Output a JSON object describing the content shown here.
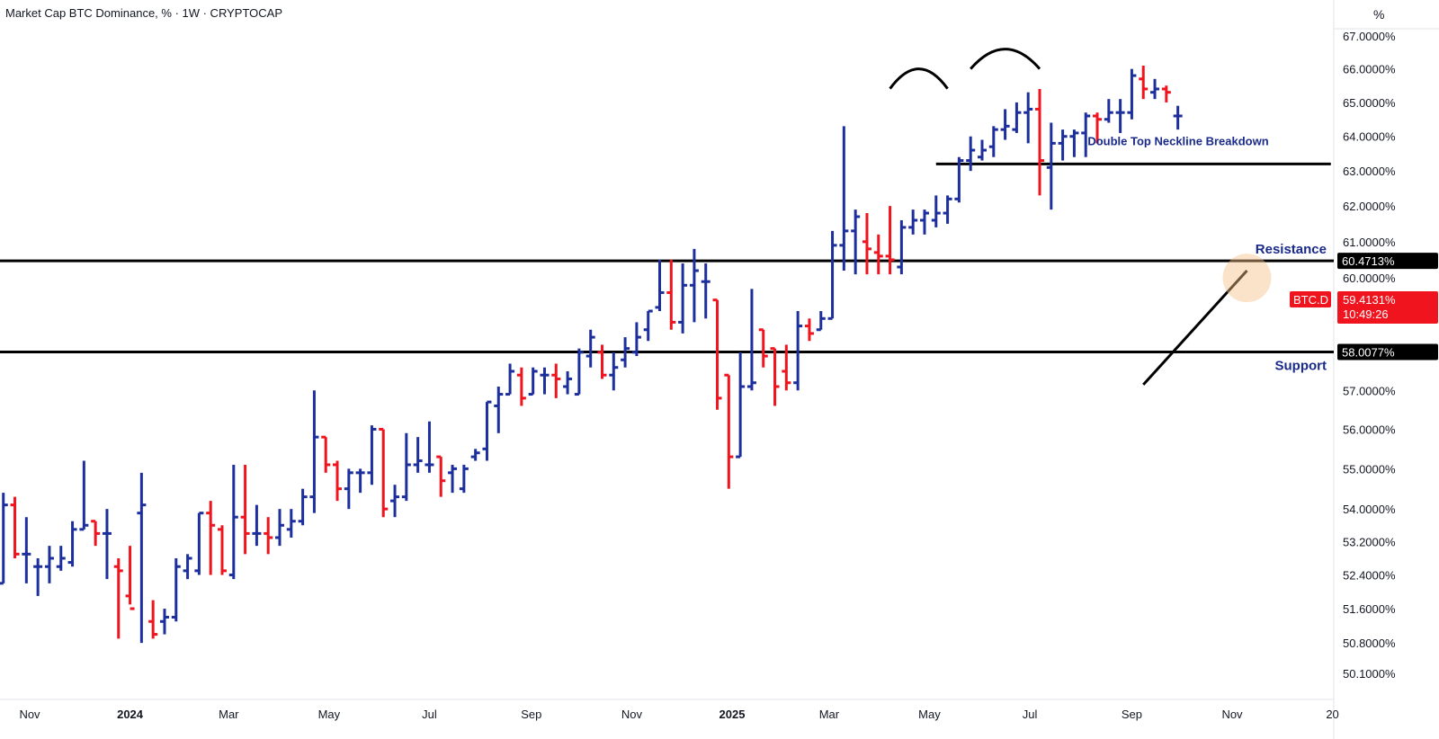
{
  "header": {
    "title": "Market Cap BTC Dominance, % · 1W · CRYPTOCAP",
    "unit": "%"
  },
  "colors": {
    "up": "#1c2f9c",
    "down": "#f0141e",
    "line": "#000000",
    "grid": "#e0e3eb",
    "annotation": "#1a2a8a",
    "highlight": "#f6c08a"
  },
  "chart_data": {
    "type": "ohlc-bar",
    "title": "Market Cap BTC Dominance, % · 1W · CRYPTOCAP",
    "y_scale": "log",
    "ylim": [
      49.6,
      67.4
    ],
    "y_ticks": [
      "67.0000%",
      "66.0000%",
      "65.0000%",
      "64.0000%",
      "63.0000%",
      "62.0000%",
      "61.0000%",
      "60.0000%",
      "59.4131%",
      "58.0077%",
      "57.0000%",
      "56.0000%",
      "55.0000%",
      "54.0000%",
      "53.2000%",
      "52.4000%",
      "51.6000%",
      "50.8000%",
      "50.1000%"
    ],
    "y_tick_values": [
      67.0,
      66.0,
      65.0,
      64.0,
      63.0,
      62.0,
      61.0,
      60.0,
      57.0,
      56.0,
      55.0,
      54.0,
      53.2,
      52.4,
      51.6,
      50.8,
      50.1
    ],
    "x_ticks": [
      {
        "label": "Nov",
        "date": "2023-11-01"
      },
      {
        "label": "2024",
        "date": "2024-01-01",
        "bold": true
      },
      {
        "label": "Mar",
        "date": "2024-03-01"
      },
      {
        "label": "May",
        "date": "2024-05-01"
      },
      {
        "label": "Jul",
        "date": "2024-07-01"
      },
      {
        "label": "Sep",
        "date": "2024-09-01"
      },
      {
        "label": "Nov",
        "date": "2024-11-01"
      },
      {
        "label": "2025",
        "date": "2025-01-01",
        "bold": true
      },
      {
        "label": "Mar",
        "date": "2025-03-01"
      },
      {
        "label": "May",
        "date": "2025-05-01"
      },
      {
        "label": "Jul",
        "date": "2025-07-01"
      },
      {
        "label": "Sep",
        "date": "2025-09-01"
      },
      {
        "label": "Nov",
        "date": "2025-11-01"
      },
      {
        "label": "20",
        "date": "2026-01-01"
      }
    ],
    "x_range": [
      "2023-10-16",
      "2026-01-04"
    ],
    "levels": {
      "resistance": {
        "value": 60.4713,
        "label": "60.4713%",
        "text": "Resistance"
      },
      "support": {
        "value": 58.0077,
        "label": "58.0077%",
        "text": "Support"
      },
      "neckline": {
        "value": 63.2,
        "from": "2025-05-05",
        "to": "2025-12-31",
        "text": "Double Top Neckline Breakdown"
      }
    },
    "current": {
      "symbol": "BTC.D",
      "value": "59.4131%",
      "countdown": "10:49:26"
    },
    "trendline": {
      "from": {
        "date": "2025-09-08",
        "value": 57.15
      },
      "to": {
        "date": "2025-11-10",
        "value": 60.2
      }
    },
    "double_top_arcs": [
      {
        "from": "2025-04-07",
        "to": "2025-05-12",
        "peak": 66.0
      },
      {
        "from": "2025-05-26",
        "to": "2025-07-07",
        "peak": 66.6
      }
    ],
    "highlight_point": {
      "date": "2025-11-10",
      "value": 60.0
    },
    "bars": [
      {
        "date": "2023-10-16",
        "o": 52.2,
        "h": 54.4,
        "l": 52.2,
        "c": 54.1
      },
      {
        "date": "2023-10-23",
        "o": 54.1,
        "h": 54.3,
        "l": 52.8,
        "c": 52.9
      },
      {
        "date": "2023-10-30",
        "o": 52.9,
        "h": 53.8,
        "l": 52.2,
        "c": 52.9
      },
      {
        "date": "2023-11-06",
        "o": 52.6,
        "h": 52.8,
        "l": 51.9,
        "c": 52.6
      },
      {
        "date": "2023-11-13",
        "o": 52.6,
        "h": 53.1,
        "l": 52.2,
        "c": 52.8
      },
      {
        "date": "2023-11-20",
        "o": 52.6,
        "h": 53.1,
        "l": 52.5,
        "c": 52.8
      },
      {
        "date": "2023-11-27",
        "o": 52.7,
        "h": 53.7,
        "l": 52.6,
        "c": 53.5
      },
      {
        "date": "2023-12-04",
        "o": 53.5,
        "h": 55.2,
        "l": 53.5,
        "c": 53.6
      },
      {
        "date": "2023-12-11",
        "o": 53.7,
        "h": 53.7,
        "l": 53.1,
        "c": 53.4
      },
      {
        "date": "2023-12-18",
        "o": 53.4,
        "h": 54.0,
        "l": 52.3,
        "c": 53.4
      },
      {
        "date": "2023-12-25",
        "o": 52.6,
        "h": 52.8,
        "l": 50.9,
        "c": 52.5
      },
      {
        "date": "2024-01-01",
        "o": 51.9,
        "h": 53.1,
        "l": 51.7,
        "c": 51.6
      },
      {
        "date": "2024-01-08",
        "o": 53.9,
        "h": 54.9,
        "l": 50.8,
        "c": 54.1
      },
      {
        "date": "2024-01-15",
        "o": 51.3,
        "h": 51.8,
        "l": 50.9,
        "c": 51.0
      },
      {
        "date": "2024-01-22",
        "o": 51.3,
        "h": 51.6,
        "l": 51.0,
        "c": 51.4
      },
      {
        "date": "2024-01-29",
        "o": 51.4,
        "h": 52.8,
        "l": 51.3,
        "c": 52.6
      },
      {
        "date": "2024-02-05",
        "o": 52.5,
        "h": 52.9,
        "l": 52.3,
        "c": 52.8
      },
      {
        "date": "2024-02-12",
        "o": 52.5,
        "h": 53.9,
        "l": 52.4,
        "c": 53.9
      },
      {
        "date": "2024-02-19",
        "o": 53.9,
        "h": 54.2,
        "l": 52.4,
        "c": 53.6
      },
      {
        "date": "2024-02-26",
        "o": 53.5,
        "h": 53.6,
        "l": 52.4,
        "c": 52.5
      },
      {
        "date": "2024-03-04",
        "o": 52.4,
        "h": 55.1,
        "l": 52.3,
        "c": 53.8
      },
      {
        "date": "2024-03-11",
        "o": 53.8,
        "h": 55.1,
        "l": 52.9,
        "c": 53.4
      },
      {
        "date": "2024-03-18",
        "o": 53.4,
        "h": 54.1,
        "l": 53.1,
        "c": 53.4
      },
      {
        "date": "2024-03-25",
        "o": 53.4,
        "h": 53.8,
        "l": 52.9,
        "c": 53.3
      },
      {
        "date": "2024-04-01",
        "o": 53.3,
        "h": 54.0,
        "l": 53.1,
        "c": 53.6
      },
      {
        "date": "2024-04-08",
        "o": 53.5,
        "h": 54.0,
        "l": 53.3,
        "c": 53.7
      },
      {
        "date": "2024-04-15",
        "o": 53.7,
        "h": 54.5,
        "l": 53.6,
        "c": 54.3
      },
      {
        "date": "2024-04-22",
        "o": 54.3,
        "h": 57.0,
        "l": 53.9,
        "c": 55.8
      },
      {
        "date": "2024-04-29",
        "o": 55.8,
        "h": 55.8,
        "l": 54.9,
        "c": 55.1
      },
      {
        "date": "2024-05-06",
        "o": 55.1,
        "h": 55.2,
        "l": 54.2,
        "c": 54.5
      },
      {
        "date": "2024-05-13",
        "o": 54.5,
        "h": 55.0,
        "l": 54.0,
        "c": 54.9
      },
      {
        "date": "2024-05-20",
        "o": 54.9,
        "h": 55.0,
        "l": 54.4,
        "c": 54.9
      },
      {
        "date": "2024-05-27",
        "o": 54.9,
        "h": 56.1,
        "l": 54.6,
        "c": 56.0
      },
      {
        "date": "2024-06-03",
        "o": 56.0,
        "h": 56.0,
        "l": 53.8,
        "c": 54.0
      },
      {
        "date": "2024-06-10",
        "o": 54.2,
        "h": 54.6,
        "l": 53.8,
        "c": 54.3
      },
      {
        "date": "2024-06-17",
        "o": 54.3,
        "h": 55.9,
        "l": 54.2,
        "c": 55.1
      },
      {
        "date": "2024-06-24",
        "o": 55.1,
        "h": 55.8,
        "l": 54.9,
        "c": 55.2
      },
      {
        "date": "2024-07-01",
        "o": 55.1,
        "h": 56.2,
        "l": 54.9,
        "c": 55.1
      },
      {
        "date": "2024-07-08",
        "o": 55.3,
        "h": 55.3,
        "l": 54.3,
        "c": 54.7
      },
      {
        "date": "2024-07-15",
        "o": 54.9,
        "h": 55.1,
        "l": 54.4,
        "c": 55.0
      },
      {
        "date": "2024-07-22",
        "o": 54.5,
        "h": 55.1,
        "l": 54.4,
        "c": 55.0
      },
      {
        "date": "2024-07-29",
        "o": 55.3,
        "h": 55.5,
        "l": 55.2,
        "c": 55.4
      },
      {
        "date": "2024-08-05",
        "o": 55.5,
        "h": 56.7,
        "l": 55.2,
        "c": 56.7
      },
      {
        "date": "2024-08-12",
        "o": 56.6,
        "h": 57.1,
        "l": 55.9,
        "c": 56.9
      },
      {
        "date": "2024-08-19",
        "o": 56.9,
        "h": 57.7,
        "l": 56.9,
        "c": 57.5
      },
      {
        "date": "2024-08-26",
        "o": 57.4,
        "h": 57.6,
        "l": 56.6,
        "c": 56.8
      },
      {
        "date": "2024-09-02",
        "o": 56.9,
        "h": 57.6,
        "l": 56.9,
        "c": 57.5
      },
      {
        "date": "2024-09-09",
        "o": 57.4,
        "h": 57.6,
        "l": 56.9,
        "c": 57.4
      },
      {
        "date": "2024-09-16",
        "o": 57.4,
        "h": 57.7,
        "l": 56.8,
        "c": 57.3
      },
      {
        "date": "2024-09-23",
        "o": 57.1,
        "h": 57.5,
        "l": 56.9,
        "c": 57.3
      },
      {
        "date": "2024-09-30",
        "o": 56.9,
        "h": 58.1,
        "l": 56.9,
        "c": 58.0
      },
      {
        "date": "2024-10-07",
        "o": 57.9,
        "h": 58.6,
        "l": 57.6,
        "c": 58.4
      },
      {
        "date": "2024-10-14",
        "o": 58.0,
        "h": 58.2,
        "l": 57.3,
        "c": 57.4
      },
      {
        "date": "2024-10-21",
        "o": 57.4,
        "h": 58.0,
        "l": 57.0,
        "c": 57.6
      },
      {
        "date": "2024-10-28",
        "o": 57.8,
        "h": 58.4,
        "l": 57.6,
        "c": 58.1
      },
      {
        "date": "2024-11-04",
        "o": 58.0,
        "h": 58.8,
        "l": 57.9,
        "c": 58.4
      },
      {
        "date": "2024-11-11",
        "o": 58.6,
        "h": 59.1,
        "l": 58.3,
        "c": 59.1
      },
      {
        "date": "2024-11-18",
        "o": 59.2,
        "h": 60.5,
        "l": 59.1,
        "c": 59.6
      },
      {
        "date": "2024-11-25",
        "o": 59.6,
        "h": 60.5,
        "l": 58.6,
        "c": 58.8
      },
      {
        "date": "2024-12-02",
        "o": 58.8,
        "h": 60.4,
        "l": 58.5,
        "c": 59.8
      },
      {
        "date": "2024-12-09",
        "o": 59.8,
        "h": 60.8,
        "l": 58.8,
        "c": 60.2
      },
      {
        "date": "2024-12-16",
        "o": 59.9,
        "h": 60.4,
        "l": 58.9,
        "c": 59.9
      },
      {
        "date": "2024-12-23",
        "o": 59.4,
        "h": 59.4,
        "l": 56.5,
        "c": 56.8
      },
      {
        "date": "2024-12-30",
        "o": 57.4,
        "h": 57.4,
        "l": 54.5,
        "c": 55.3
      },
      {
        "date": "2025-01-06",
        "o": 55.3,
        "h": 58.0,
        "l": 55.3,
        "c": 57.1
      },
      {
        "date": "2025-01-13",
        "o": 57.1,
        "h": 59.7,
        "l": 57.0,
        "c": 57.2
      },
      {
        "date": "2025-01-20",
        "o": 58.6,
        "h": 58.6,
        "l": 57.6,
        "c": 57.9
      },
      {
        "date": "2025-01-27",
        "o": 58.1,
        "h": 58.1,
        "l": 56.6,
        "c": 57.1
      },
      {
        "date": "2025-02-03",
        "o": 57.5,
        "h": 58.2,
        "l": 57.0,
        "c": 57.2
      },
      {
        "date": "2025-02-10",
        "o": 57.2,
        "h": 59.1,
        "l": 57.0,
        "c": 58.7
      },
      {
        "date": "2025-02-17",
        "o": 58.7,
        "h": 58.9,
        "l": 58.3,
        "c": 58.5
      },
      {
        "date": "2025-02-24",
        "o": 58.6,
        "h": 59.1,
        "l": 58.6,
        "c": 58.9
      },
      {
        "date": "2025-03-03",
        "o": 58.9,
        "h": 61.3,
        "l": 58.9,
        "c": 60.9
      },
      {
        "date": "2025-03-10",
        "o": 60.9,
        "h": 64.3,
        "l": 60.2,
        "c": 61.3
      },
      {
        "date": "2025-03-17",
        "o": 61.3,
        "h": 61.9,
        "l": 60.1,
        "c": 61.7
      },
      {
        "date": "2025-03-24",
        "o": 61.0,
        "h": 61.8,
        "l": 60.1,
        "c": 60.8
      },
      {
        "date": "2025-03-31",
        "o": 60.7,
        "h": 61.2,
        "l": 60.1,
        "c": 60.6
      },
      {
        "date": "2025-04-07",
        "o": 60.6,
        "h": 62.0,
        "l": 60.1,
        "c": 60.5
      },
      {
        "date": "2025-04-14",
        "o": 60.3,
        "h": 61.6,
        "l": 60.1,
        "c": 61.4
      },
      {
        "date": "2025-04-21",
        "o": 61.4,
        "h": 61.9,
        "l": 61.2,
        "c": 61.6
      },
      {
        "date": "2025-04-28",
        "o": 61.6,
        "h": 61.9,
        "l": 61.2,
        "c": 61.8
      },
      {
        "date": "2025-05-05",
        "o": 61.6,
        "h": 62.3,
        "l": 61.4,
        "c": 61.8
      },
      {
        "date": "2025-05-12",
        "o": 61.8,
        "h": 62.3,
        "l": 61.5,
        "c": 62.2
      },
      {
        "date": "2025-05-19",
        "o": 62.2,
        "h": 63.4,
        "l": 62.1,
        "c": 63.3
      },
      {
        "date": "2025-05-26",
        "o": 63.3,
        "h": 64.0,
        "l": 63.0,
        "c": 63.6
      },
      {
        "date": "2025-06-02",
        "o": 63.4,
        "h": 63.9,
        "l": 63.3,
        "c": 63.6
      },
      {
        "date": "2025-06-09",
        "o": 63.7,
        "h": 64.3,
        "l": 63.4,
        "c": 64.2
      },
      {
        "date": "2025-06-16",
        "o": 64.2,
        "h": 64.8,
        "l": 63.9,
        "c": 64.3
      },
      {
        "date": "2025-06-23",
        "o": 64.2,
        "h": 65.0,
        "l": 64.1,
        "c": 64.7
      },
      {
        "date": "2025-06-30",
        "o": 64.7,
        "h": 65.3,
        "l": 63.8,
        "c": 64.8
      },
      {
        "date": "2025-07-07",
        "o": 64.8,
        "h": 65.4,
        "l": 62.3,
        "c": 63.3
      },
      {
        "date": "2025-07-14",
        "o": 63.1,
        "h": 64.4,
        "l": 61.9,
        "c": 63.8
      },
      {
        "date": "2025-07-21",
        "o": 63.8,
        "h": 64.2,
        "l": 63.3,
        "c": 64.0
      },
      {
        "date": "2025-07-28",
        "o": 64.0,
        "h": 64.2,
        "l": 63.4,
        "c": 64.1
      },
      {
        "date": "2025-08-04",
        "o": 64.1,
        "h": 64.7,
        "l": 63.4,
        "c": 64.6
      },
      {
        "date": "2025-08-11",
        "o": 64.6,
        "h": 64.7,
        "l": 63.8,
        "c": 64.5
      },
      {
        "date": "2025-08-18",
        "o": 64.5,
        "h": 65.1,
        "l": 64.4,
        "c": 64.7
      },
      {
        "date": "2025-08-25",
        "o": 64.7,
        "h": 65.1,
        "l": 64.1,
        "c": 64.7
      },
      {
        "date": "2025-09-01",
        "o": 64.7,
        "h": 66.0,
        "l": 64.5,
        "c": 65.8
      },
      {
        "date": "2025-09-08",
        "o": 65.7,
        "h": 66.1,
        "l": 65.1,
        "c": 65.4
      },
      {
        "date": "2025-09-15",
        "o": 65.3,
        "h": 65.7,
        "l": 65.1,
        "c": 65.4
      },
      {
        "date": "2025-09-22",
        "o": 65.4,
        "h": 65.5,
        "l": 65.0,
        "c": 65.3
      },
      {
        "date": "2025-09-29",
        "o": 64.6,
        "h": 64.9,
        "l": 64.2,
        "c": 64.6
      }
    ]
  }
}
